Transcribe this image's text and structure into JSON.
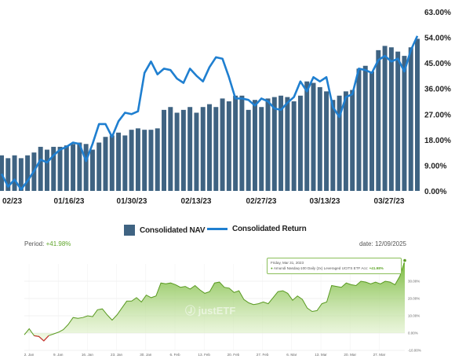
{
  "chart_data": [
    {
      "type": "bar+line",
      "title": "",
      "categories": [
        "01/02/23",
        "01/03/23",
        "01/04/23",
        "01/05/23",
        "01/06/23",
        "01/09/23",
        "01/10/23",
        "01/11/23",
        "01/12/23",
        "01/13/23",
        "01/16/23",
        "01/17/23",
        "01/18/23",
        "01/19/23",
        "01/20/23",
        "01/23/23",
        "01/24/23",
        "01/25/23",
        "01/26/23",
        "01/27/23",
        "01/30/23",
        "01/31/23",
        "02/01/23",
        "02/02/23",
        "02/03/23",
        "02/06/23",
        "02/07/23",
        "02/08/23",
        "02/09/23",
        "02/10/23",
        "02/13/23",
        "02/14/23",
        "02/15/23",
        "02/16/23",
        "02/17/23",
        "02/20/23",
        "02/21/23",
        "02/22/23",
        "02/23/23",
        "02/24/23",
        "02/27/23",
        "02/28/23",
        "03/01/23",
        "03/02/23",
        "03/03/23",
        "03/06/23",
        "03/07/23",
        "03/08/23",
        "03/09/23",
        "03/10/23",
        "03/13/23",
        "03/14/23",
        "03/15/23",
        "03/16/23",
        "03/17/23",
        "03/20/23",
        "03/21/23",
        "03/22/23",
        "03/23/23",
        "03/24/23",
        "03/27/23",
        "03/28/23",
        "03/29/23",
        "03/30/23",
        "03/31/23"
      ],
      "x_tick_labels": [
        "02/23",
        "01/16/23",
        "01/30/23",
        "02/13/23",
        "02/27/23",
        "03/13/23",
        "03/27/23"
      ],
      "y_tick_labels": [
        "0.00%",
        "9.00%",
        "18.00%",
        "27.00%",
        "36.00%",
        "45.00%",
        "54.00%",
        "63.00%"
      ],
      "ylim": [
        0,
        63
      ],
      "series": [
        {
          "name": "Consolidated NAV",
          "kind": "bar",
          "color": "#3f6382",
          "values": [
            12.5,
            11.5,
            12.5,
            11.5,
            12.5,
            13.5,
            15.5,
            14.5,
            15.5,
            15.5,
            16.0,
            16.5,
            17.0,
            16.5,
            14.5,
            17.0,
            19.0,
            19.5,
            20.5,
            19.5,
            21.5,
            22.0,
            21.5,
            21.5,
            22.0,
            28.5,
            29.5,
            27.5,
            28.5,
            29.5,
            27.5,
            29.5,
            30.5,
            29.5,
            32.5,
            31.5,
            33.5,
            33.5,
            28.5,
            32.0,
            29.5,
            32.5,
            33.0,
            33.5,
            33.0,
            31.5,
            33.5,
            38.5,
            38.0,
            36.5,
            35.0,
            32.0,
            33.5,
            35.0,
            35.5,
            43.0,
            44.0,
            42.0,
            49.5,
            51.0,
            50.5,
            49.0,
            47.5,
            50.5,
            53.5
          ]
        },
        {
          "name": "Consolidated Return",
          "kind": "line",
          "color": "#1f7fd0",
          "values": [
            6.0,
            1.5,
            4.0,
            0.5,
            3.5,
            7.0,
            11.0,
            10.0,
            12.5,
            14.5,
            15.5,
            17.0,
            16.5,
            10.5,
            16.5,
            23.5,
            23.5,
            19.0,
            24.5,
            27.5,
            27.0,
            28.0,
            41.5,
            45.5,
            41.0,
            43.0,
            42.5,
            39.5,
            38.0,
            43.0,
            40.5,
            38.5,
            43.5,
            47.0,
            46.5,
            40.0,
            32.5,
            32.5,
            32.0,
            30.0,
            32.5,
            31.5,
            29.0,
            28.5,
            31.0,
            33.0,
            38.5,
            35.0,
            40.0,
            38.5,
            40.0,
            29.5,
            26.0,
            33.0,
            34.0,
            43.0,
            42.5,
            41.5,
            46.0,
            47.5,
            45.5,
            46.5,
            42.0,
            49.5,
            54.5
          ]
        }
      ],
      "legend": "bottom-center",
      "grid": false
    },
    {
      "type": "area",
      "title": "",
      "x_tick_labels": [
        "2. Jan",
        "9. Jan",
        "16. Jan",
        "23. Jan",
        "30. Jan",
        "6. Feb",
        "13. Feb",
        "20. Feb",
        "27. Feb",
        "6. Mar",
        "13. Mar",
        "20. Mar",
        "27. Mar"
      ],
      "y_tick_labels": [
        "-10.00%",
        "0.00%",
        "10.00%",
        "20.00%",
        "30.00%"
      ],
      "ylim": [
        -10,
        40
      ],
      "series": [
        {
          "name": "Amundi Nasdaq-100 Daily (2x) Leveraged UCITS ETF Acc",
          "color": "#7cc142",
          "values": [
            -1.0,
            2.5,
            -1.5,
            -2.0,
            -4.5,
            -1.5,
            -0.5,
            0.5,
            2.0,
            5.0,
            9.0,
            8.5,
            9.0,
            10.0,
            9.5,
            13.5,
            14.0,
            10.5,
            7.5,
            10.5,
            14.5,
            18.5,
            18.5,
            20.5,
            18.0,
            22.0,
            20.5,
            21.5,
            29.0,
            28.5,
            29.0,
            28.0,
            26.5,
            27.0,
            25.5,
            27.5,
            25.0,
            23.0,
            24.0,
            29.0,
            29.5,
            26.5,
            26.0,
            23.5,
            24.5,
            19.5,
            17.5,
            16.5,
            17.0,
            18.0,
            17.0,
            20.5,
            24.0,
            24.5,
            23.0,
            19.0,
            21.5,
            19.5,
            14.5,
            12.5,
            13.0,
            17.0,
            18.0,
            27.5,
            27.0,
            26.5,
            29.0,
            28.0,
            27.5,
            30.0,
            29.5,
            28.5,
            29.5,
            28.5,
            30.0,
            29.5,
            28.0,
            33.0,
            42.0
          ]
        }
      ],
      "negative_segment_color": "#cc3333",
      "watermark": "justETF",
      "legend": "none",
      "grid": true
    }
  ],
  "header": {
    "period_label": "Period:",
    "period_value": "+41.98%",
    "date_text": "date: 12/09/2025"
  },
  "tooltip": {
    "date": "Friday, Mar 31, 2023",
    "series_name": "Amundi Nasdaq-100 Daily (2x) Leveraged UCITS ETF Acc:",
    "value": "+41.98%"
  }
}
